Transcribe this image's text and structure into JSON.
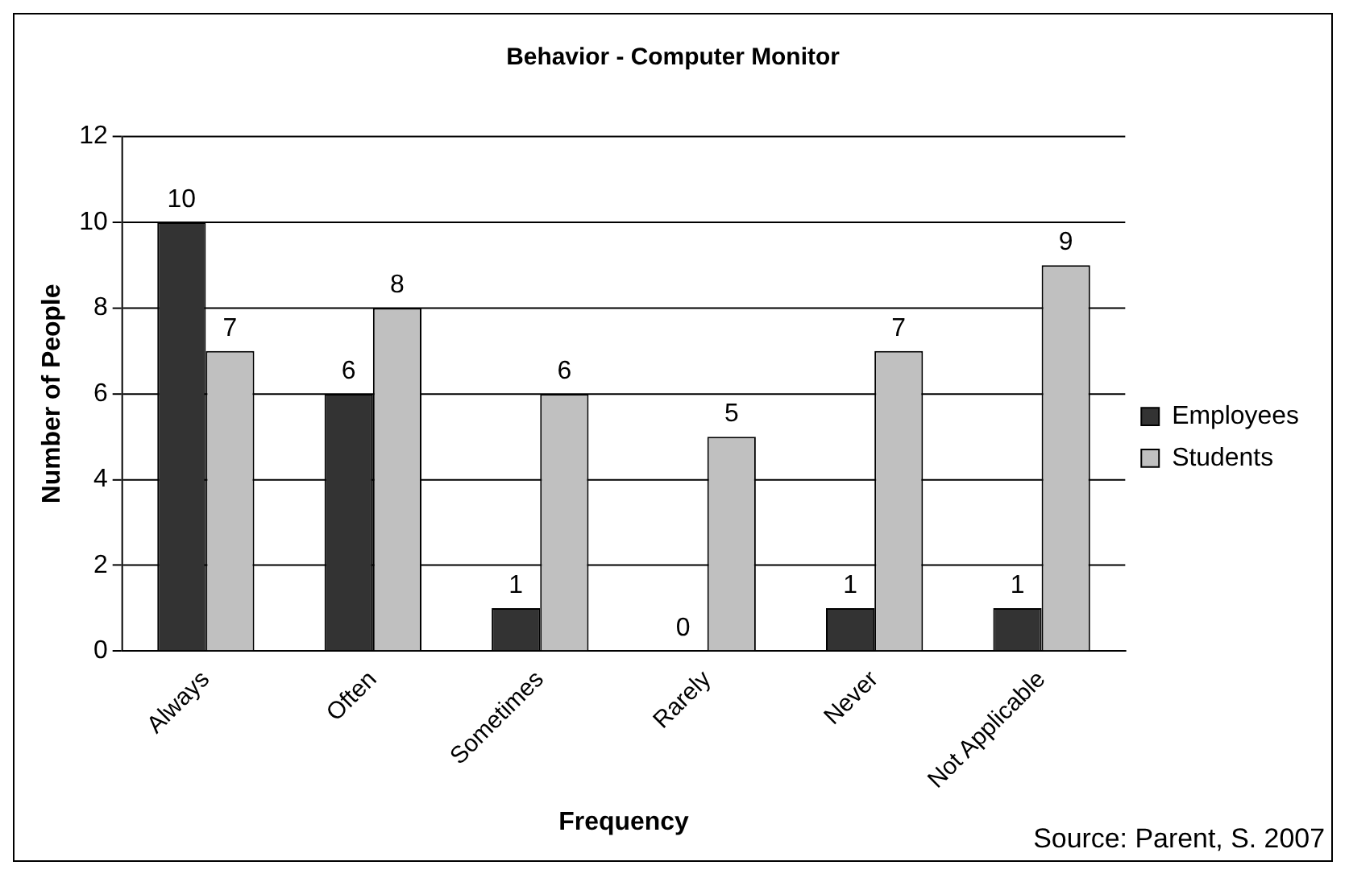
{
  "chart_data": {
    "type": "bar",
    "title": "Behavior - Computer Monitor",
    "xlabel": "Frequency",
    "ylabel": "Number of People",
    "categories": [
      "Always",
      "Often",
      "Sometimes",
      "Rarely",
      "Never",
      "Not Applicable"
    ],
    "series": [
      {
        "name": "Employees",
        "color": "#333333",
        "values": [
          10,
          6,
          1,
          0,
          1,
          1
        ]
      },
      {
        "name": "Students",
        "color": "#c0c0c0",
        "values": [
          7,
          8,
          6,
          5,
          7,
          9
        ]
      }
    ],
    "ylim": [
      0,
      12
    ],
    "yticks": [
      0,
      2,
      4,
      6,
      8,
      10,
      12
    ],
    "grid": "y",
    "legend": "right",
    "data_labels": true,
    "annotations": [
      "Source: Parent, S. 2007"
    ]
  }
}
